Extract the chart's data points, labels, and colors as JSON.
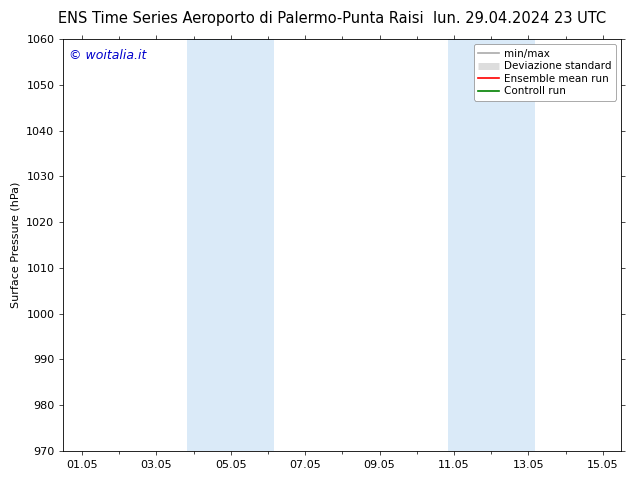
{
  "title_left": "ENS Time Series Aeroporto di Palermo-Punta Raisi",
  "title_right": "lun. 29.04.2024 23 UTC",
  "ylabel": "Surface Pressure (hPa)",
  "ylim": [
    970,
    1060
  ],
  "yticks": [
    970,
    980,
    990,
    1000,
    1010,
    1020,
    1030,
    1040,
    1050,
    1060
  ],
  "xtick_labels": [
    "01.05",
    "03.05",
    "05.05",
    "07.05",
    "09.05",
    "11.05",
    "13.05",
    "15.05"
  ],
  "xtick_positions": [
    1,
    3,
    5,
    7,
    9,
    11,
    13,
    15
  ],
  "xlim": [
    0.5,
    15.5
  ],
  "shaded_bands": [
    {
      "x_start": 3.83,
      "x_end": 6.17,
      "color": "#daeaf8"
    },
    {
      "x_start": 10.83,
      "x_end": 13.17,
      "color": "#daeaf8"
    }
  ],
  "legend_labels": [
    "min/max",
    "Deviazione standard",
    "Ensemble mean run",
    "Controll run"
  ],
  "legend_line_colors": [
    "#aaaaaa",
    "#b0c8dc",
    "red",
    "green"
  ],
  "watermark_text": "© woitalia.it",
  "watermark_color": "#0000cc",
  "bg_color": "#ffffff",
  "plot_bg_color": "#ffffff",
  "title_fontsize": 10.5,
  "ylabel_fontsize": 8,
  "tick_fontsize": 8,
  "watermark_fontsize": 9,
  "legend_fontsize": 7.5
}
